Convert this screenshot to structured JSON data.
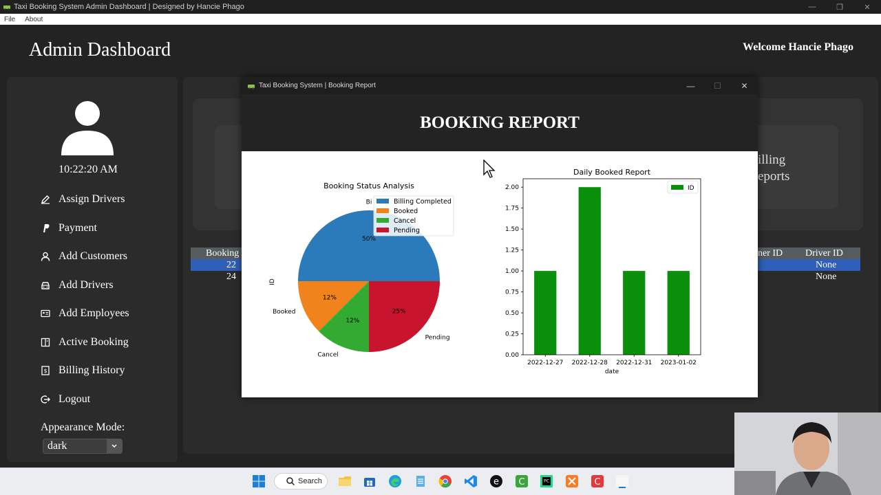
{
  "window": {
    "title": "Taxi Booking System Admin Dashboard | Designed by Hancie Phago",
    "menu": [
      "File",
      "About"
    ]
  },
  "header": {
    "title": "Admin Dashboard",
    "welcome": "Welcome Hancie Phago"
  },
  "sidebar": {
    "time": "10:22:20 AM",
    "items": [
      {
        "label": "Assign Drivers",
        "icon": "pencil-icon"
      },
      {
        "label": "Payment",
        "icon": "paypal-icon"
      },
      {
        "label": "Add Customers",
        "icon": "user-icon"
      },
      {
        "label": "Add Drivers",
        "icon": "car-icon"
      },
      {
        "label": "Add Employees",
        "icon": "id-card-icon"
      },
      {
        "label": "Active Booking",
        "icon": "book-icon"
      },
      {
        "label": "Billing History",
        "icon": "receipt-icon"
      },
      {
        "label": "Logout",
        "icon": "logout-icon"
      }
    ],
    "appearance_label": "Appearance Mode:",
    "appearance_value": "dark"
  },
  "background_panel": {
    "card_text_line1": "illing",
    "card_text_line2": "eports",
    "table": {
      "left_header": "Booking",
      "right_header_partial": "ner ID",
      "right_header": "Driver ID",
      "rows": [
        {
          "booking": "22",
          "driver": "None"
        },
        {
          "booking": "24",
          "driver": "None"
        }
      ]
    }
  },
  "dialog": {
    "title": "Taxi Booking System | Booking Report",
    "heading": "BOOKING REPORT"
  },
  "chart_data": [
    {
      "type": "pie",
      "title": "Booking Status Analysis",
      "ylabel": "ID",
      "labels": [
        "Billing Completed",
        "Booked",
        "Cancel",
        "Pending"
      ],
      "slice_labels": [
        "Bi",
        "Booked",
        "Cancel",
        "Pending"
      ],
      "values": [
        50,
        12.5,
        12.5,
        25
      ],
      "pct_labels": [
        "50%",
        "12%",
        "12%",
        "25%"
      ],
      "colors": [
        "#2b7bba",
        "#f0831c",
        "#33ab33",
        "#c8142c"
      ],
      "legend": "top-right"
    },
    {
      "type": "bar",
      "title": "Daily Booked Report",
      "xlabel": "date",
      "categories": [
        "2022-12-27",
        "2022-12-28",
        "2022-12-31",
        "2023-01-02"
      ],
      "series": [
        {
          "name": "ID",
          "values": [
            1,
            2,
            1,
            1
          ]
        }
      ],
      "ylim": [
        0,
        2.1
      ],
      "yticks": [
        "0.00",
        "0.25",
        "0.50",
        "0.75",
        "1.00",
        "1.25",
        "1.50",
        "1.75",
        "2.00"
      ],
      "color": "#0a8f0a",
      "legend": "top-right"
    }
  ],
  "taskbar": {
    "search_label": "Search"
  }
}
